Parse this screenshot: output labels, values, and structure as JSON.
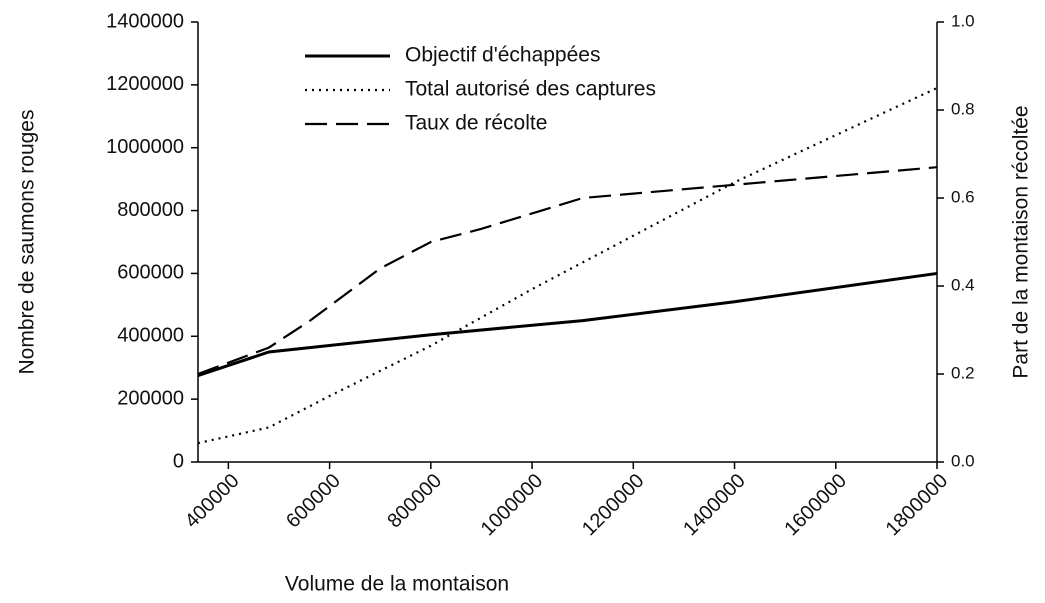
{
  "chart_data": {
    "type": "line",
    "xlabel": "Volume de la montaison",
    "ylabel": "Nombre de saumons rouges",
    "y2label": "Part de la montaison récoltée",
    "xlim": [
      340000,
      1800000
    ],
    "xticks": [
      400000,
      600000,
      800000,
      1000000,
      1200000,
      1400000,
      1600000,
      1800000
    ],
    "ylim": [
      0,
      1400000
    ],
    "yticks": [
      0,
      200000,
      400000,
      600000,
      800000,
      1000000,
      1200000,
      1400000
    ],
    "y2lim": [
      0,
      1
    ],
    "y2ticks": [
      {
        "value": 0,
        "label": "0.0"
      },
      0.2,
      0.4,
      0.6,
      0.8,
      {
        "value": 1,
        "label": "1.0"
      }
    ],
    "legend": "upper left",
    "series": [
      {
        "name": "Objectif d'échappées",
        "color": "#000000",
        "style": "solid",
        "x": [
          340000,
          480000,
          800000,
          1100000,
          1400000,
          1800000
        ],
        "values": [
          275000,
          350000,
          405000,
          450000,
          510000,
          600000
        ]
      },
      {
        "name": "Total autorisé des captures",
        "color": "#000000",
        "style": "dotted",
        "x": [
          340000,
          480000,
          600000,
          800000,
          1000000,
          1200000,
          1400000,
          1600000,
          1800000
        ],
        "values": [
          60000,
          110000,
          210000,
          370000,
          550000,
          720000,
          890000,
          1040000,
          1190000
        ]
      },
      {
        "name": "Taux de récolte",
        "color": "#000000",
        "style": "dashed",
        "axis": "y2",
        "x": [
          340000,
          480000,
          560000,
          700000,
          800000,
          900000,
          1000000,
          1100000,
          1200000,
          1300000,
          1400000,
          1500000,
          1600000,
          1700000,
          1800000
        ],
        "values": [
          0.2,
          0.26,
          0.32,
          0.44,
          0.5,
          0.53,
          0.565,
          0.6,
          0.61,
          0.62,
          0.63,
          0.64,
          0.65,
          0.66,
          0.67
        ]
      }
    ]
  }
}
